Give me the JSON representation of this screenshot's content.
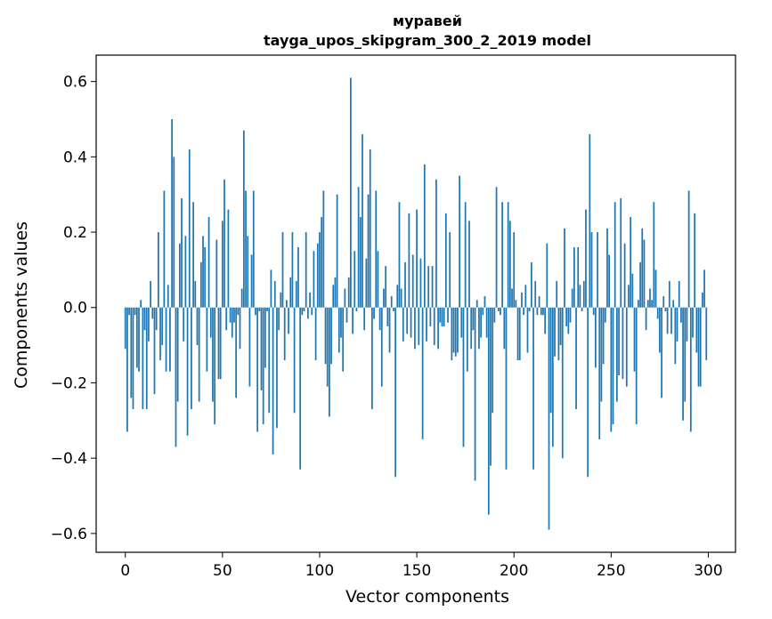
{
  "chart_data": {
    "type": "bar",
    "title": "муравей",
    "subtitle": "tayga_upos_skipgram_300_2_2019 model",
    "xlabel": "Vector components",
    "ylabel": "Components values",
    "xlim": [
      -15,
      314
    ],
    "ylim": [
      -0.65,
      0.67
    ],
    "xticks": [
      0,
      50,
      100,
      150,
      200,
      250,
      300
    ],
    "xtick_labels": [
      "0",
      "50",
      "100",
      "150",
      "200",
      "250",
      "300"
    ],
    "yticks": [
      -0.6,
      -0.4,
      -0.2,
      0.0,
      0.2,
      0.4,
      0.6
    ],
    "ytick_labels": [
      "−0.6",
      "−0.4",
      "−0.2",
      "0.0",
      "0.2",
      "0.4",
      "0.6"
    ],
    "bar_color": "#1f77b4",
    "x": [
      0,
      1,
      2,
      3,
      4,
      5,
      6,
      7,
      8,
      9,
      10,
      11,
      12,
      13,
      14,
      15,
      16,
      17,
      18,
      19,
      20,
      21,
      22,
      23,
      24,
      25,
      26,
      27,
      28,
      29,
      30,
      31,
      32,
      33,
      34,
      35,
      36,
      37,
      38,
      39,
      40,
      41,
      42,
      43,
      44,
      45,
      46,
      47,
      48,
      49,
      50,
      51,
      52,
      53,
      54,
      55,
      56,
      57,
      58,
      59,
      60,
      61,
      62,
      63,
      64,
      65,
      66,
      67,
      68,
      69,
      70,
      71,
      72,
      73,
      74,
      75,
      76,
      77,
      78,
      79,
      80,
      81,
      82,
      83,
      84,
      85,
      86,
      87,
      88,
      89,
      90,
      91,
      92,
      93,
      94,
      95,
      96,
      97,
      98,
      99,
      100,
      101,
      102,
      103,
      104,
      105,
      106,
      107,
      108,
      109,
      110,
      111,
      112,
      113,
      114,
      115,
      116,
      117,
      118,
      119,
      120,
      121,
      122,
      123,
      124,
      125,
      126,
      127,
      128,
      129,
      130,
      131,
      132,
      133,
      134,
      135,
      136,
      137,
      138,
      139,
      140,
      141,
      142,
      143,
      144,
      145,
      146,
      147,
      148,
      149,
      150,
      151,
      152,
      153,
      154,
      155,
      156,
      157,
      158,
      159,
      160,
      161,
      162,
      163,
      164,
      165,
      166,
      167,
      168,
      169,
      170,
      171,
      172,
      173,
      174,
      175,
      176,
      177,
      178,
      179,
      180,
      181,
      182,
      183,
      184,
      185,
      186,
      187,
      188,
      189,
      190,
      191,
      192,
      193,
      194,
      195,
      196,
      197,
      198,
      199,
      200,
      201,
      202,
      203,
      204,
      205,
      206,
      207,
      208,
      209,
      210,
      211,
      212,
      213,
      214,
      215,
      216,
      217,
      218,
      219,
      220,
      221,
      222,
      223,
      224,
      225,
      226,
      227,
      228,
      229,
      230,
      231,
      232,
      233,
      234,
      235,
      236,
      237,
      238,
      239,
      240,
      241,
      242,
      243,
      244,
      245,
      246,
      247,
      248,
      249,
      250,
      251,
      252,
      253,
      254,
      255,
      256,
      257,
      258,
      259,
      260,
      261,
      262,
      263,
      264,
      265,
      266,
      267,
      268,
      269,
      270,
      271,
      272,
      273,
      274,
      275,
      276,
      277,
      278,
      279,
      280,
      281,
      282,
      283,
      284,
      285,
      286,
      287,
      288,
      289,
      290,
      291,
      292,
      293,
      294,
      295,
      296,
      297,
      298,
      299
    ],
    "values": [
      -0.11,
      -0.33,
      -0.02,
      -0.24,
      -0.27,
      -0.02,
      -0.16,
      -0.17,
      0.02,
      -0.27,
      -0.06,
      -0.27,
      -0.09,
      0.07,
      -0.03,
      -0.23,
      -0.06,
      0.2,
      -0.14,
      -0.1,
      0.31,
      -0.17,
      0.06,
      -0.17,
      0.5,
      0.4,
      -0.37,
      -0.25,
      0.17,
      0.29,
      -0.09,
      0.19,
      -0.34,
      0.42,
      -0.27,
      0.28,
      0.07,
      -0.1,
      -0.25,
      0.12,
      0.19,
      0.16,
      -0.17,
      0.24,
      -0.08,
      -0.25,
      -0.31,
      0.18,
      -0.19,
      -0.19,
      0.23,
      0.34,
      -0.06,
      0.26,
      -0.04,
      -0.08,
      -0.04,
      -0.24,
      -0.02,
      -0.11,
      0.05,
      0.47,
      0.31,
      0.19,
      -0.21,
      0.14,
      0.31,
      -0.02,
      -0.33,
      -0.01,
      -0.22,
      -0.31,
      -0.16,
      -0.01,
      -0.28,
      0.1,
      -0.39,
      0.07,
      -0.32,
      -0.06,
      0.04,
      0.2,
      -0.14,
      0.02,
      -0.07,
      0.08,
      0.2,
      -0.28,
      0.07,
      0.16,
      -0.43,
      -0.02,
      -0.01,
      0.2,
      -0.03,
      0.04,
      -0.02,
      0.15,
      -0.14,
      0.17,
      0.2,
      0.24,
      0.31,
      -0.15,
      -0.21,
      -0.29,
      -0.15,
      0.06,
      0.08,
      0.3,
      -0.12,
      -0.08,
      -0.17,
      0.05,
      -0.04,
      0.08,
      0.61,
      -0.07,
      0.15,
      -0.01,
      0.32,
      0.24,
      0.46,
      -0.06,
      0.13,
      0.3,
      0.42,
      -0.27,
      -0.03,
      0.31,
      0.15,
      -0.06,
      -0.21,
      0.05,
      0.11,
      -0.05,
      -0.12,
      0.03,
      -0.01,
      -0.45,
      0.06,
      0.28,
      0.05,
      -0.09,
      0.12,
      -0.07,
      0.25,
      -0.08,
      0.14,
      -0.11,
      0.26,
      -0.1,
      0.13,
      -0.35,
      0.38,
      -0.09,
      0.11,
      -0.05,
      0.11,
      -0.1,
      0.34,
      -0.11,
      -0.04,
      -0.05,
      -0.05,
      0.25,
      -0.04,
      0.2,
      -0.14,
      -0.12,
      -0.13,
      -0.12,
      0.35,
      -0.08,
      -0.37,
      0.28,
      -0.17,
      0.23,
      -0.11,
      -0.06,
      -0.46,
      0.02,
      -0.11,
      -0.08,
      -0.02,
      0.03,
      -0.08,
      -0.55,
      -0.42,
      -0.28,
      -0.04,
      0.32,
      -0.01,
      -0.02,
      0.28,
      -0.11,
      -0.43,
      0.28,
      0.23,
      0.05,
      0.2,
      0.02,
      -0.14,
      -0.14,
      0.04,
      -0.02,
      0.06,
      -0.12,
      -0.01,
      0.12,
      -0.43,
      0.07,
      -0.02,
      0.03,
      -0.02,
      -0.02,
      -0.07,
      0.17,
      -0.59,
      -0.28,
      -0.37,
      -0.13,
      0.07,
      -0.14,
      -0.1,
      -0.4,
      0.21,
      -0.05,
      -0.07,
      -0.04,
      0.05,
      0.16,
      -0.27,
      0.16,
      0.06,
      -0.01,
      0.07,
      0.26,
      -0.45,
      0.46,
      0.2,
      -0.02,
      -0.16,
      0.2,
      -0.35,
      -0.25,
      -0.15,
      -0.04,
      0.21,
      0.14,
      -0.33,
      -0.31,
      0.28,
      -0.25,
      -0.18,
      0.29,
      -0.19,
      0.17,
      -0.21,
      0.06,
      0.24,
      0.09,
      -0.17,
      -0.31,
      0.02,
      0.12,
      0.21,
      0.18,
      -0.06,
      0.02,
      0.05,
      0.02,
      0.28,
      0.1,
      -0.03,
      -0.12,
      -0.24,
      0.03,
      -0.01,
      -0.07,
      0.07,
      -0.07,
      0.02,
      -0.15,
      -0.09,
      0.07,
      -0.04,
      -0.3,
      -0.25,
      -0.09,
      0.31,
      -0.33,
      -0.08,
      0.25,
      -0.12,
      -0.21,
      -0.21,
      0.04,
      0.1,
      -0.14
    ]
  }
}
